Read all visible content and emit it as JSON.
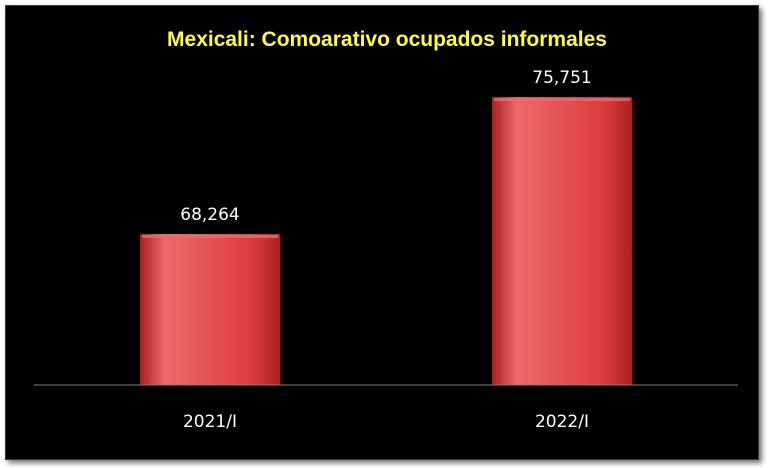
{
  "chart_data": {
    "type": "bar",
    "title": "Mexicali: Comoarativo ocupados informales",
    "xlabel": "",
    "ylabel": "",
    "categories": [
      "2021/I",
      "2022/I"
    ],
    "values": [
      68264,
      75751
    ],
    "data_labels": [
      "68,264",
      "75,751"
    ],
    "ylim": [
      60000,
      78000
    ],
    "grid": false,
    "legend": "none"
  },
  "colors": {
    "background": "#000000",
    "bar_fill": "#d83a3a",
    "bar_highlight": "#ef6a6a",
    "bar_shade": "#a82020",
    "title": "#ffff33",
    "text": "#ffffff",
    "axis": "#808080"
  }
}
